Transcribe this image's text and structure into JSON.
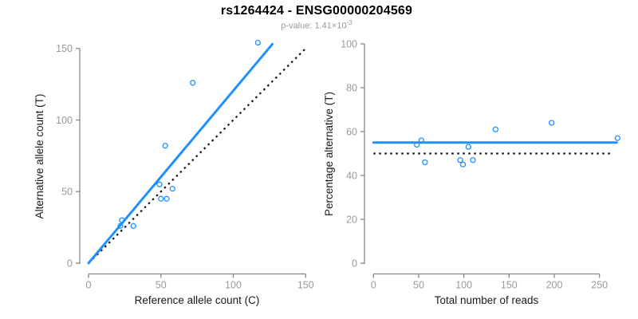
{
  "header": {
    "title": "rs1264424 - ENSG00000204569",
    "subtitle_prefix": "p-value: 1.41×10",
    "subtitle_exponent": "-3"
  },
  "colors": {
    "accent_blue": "#1E90FF",
    "reference_black": "#111111",
    "axis_line": "#888888",
    "tick_label": "#999999",
    "axis_title": "#1a1a1a",
    "background": "#ffffff"
  },
  "chart_data": [
    {
      "panel": "left",
      "type": "scatter",
      "xlabel": "Reference allele count (C)",
      "ylabel": "Alternative allele count (T)",
      "xlim": [
        0,
        150
      ],
      "ylim": [
        0,
        155
      ],
      "xticks": [
        0,
        50,
        100,
        150
      ],
      "yticks": [
        0,
        50,
        100,
        150
      ],
      "grid": false,
      "points": [
        [
          22,
          26
        ],
        [
          23,
          30
        ],
        [
          31,
          26
        ],
        [
          49,
          55
        ],
        [
          50,
          45
        ],
        [
          54,
          45
        ],
        [
          58,
          52
        ],
        [
          53,
          82
        ],
        [
          72,
          126
        ],
        [
          117,
          154
        ]
      ],
      "regression_line": {
        "x1": 0,
        "y1": 0,
        "x2": 127,
        "y2": 153,
        "style": "solid"
      },
      "identity_line": {
        "x1": 3,
        "y1": 3,
        "x2": 151,
        "y2": 151,
        "style": "dotted"
      }
    },
    {
      "panel": "right",
      "type": "scatter",
      "xlabel": "Total number of reads",
      "ylabel": "Percentage alternative (T)",
      "xlim": [
        0,
        270
      ],
      "ylim": [
        0,
        100
      ],
      "xticks": [
        0,
        50,
        100,
        150,
        200,
        250
      ],
      "yticks": [
        0,
        20,
        40,
        60,
        80,
        100
      ],
      "grid": false,
      "points": [
        [
          48,
          54
        ],
        [
          53,
          56
        ],
        [
          57,
          46
        ],
        [
          96,
          47
        ],
        [
          99,
          45
        ],
        [
          105,
          53
        ],
        [
          110,
          47
        ],
        [
          135,
          61
        ],
        [
          197,
          64
        ],
        [
          270,
          57
        ]
      ],
      "regression_line": {
        "x1": 0,
        "y1": 55,
        "x2": 269,
        "y2": 55,
        "style": "solid"
      },
      "identity_line": {
        "x1": 0,
        "y1": 50,
        "x2": 265,
        "y2": 50,
        "style": "dotted"
      }
    }
  ]
}
